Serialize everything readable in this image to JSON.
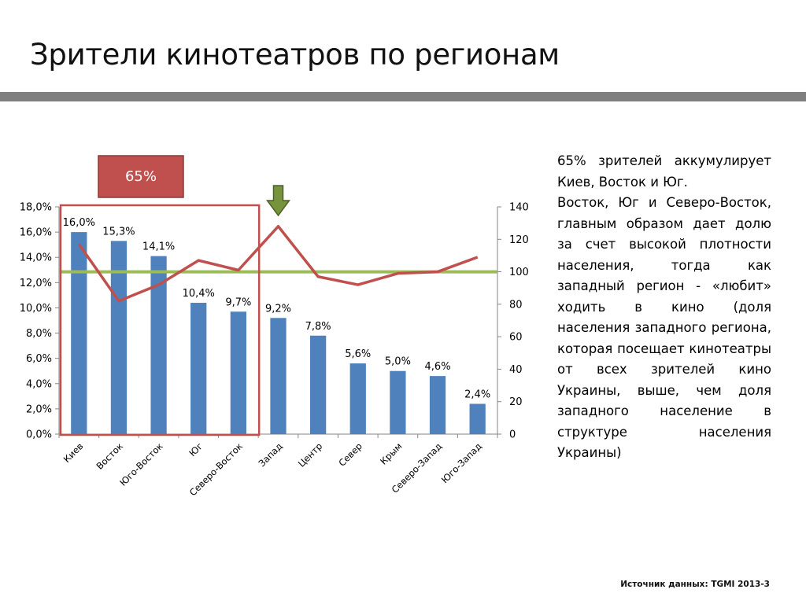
{
  "title": "Зрители кинотеатров по регионам",
  "highlight_label": "65%",
  "side_text": [
    "65% зрителей аккумулирует Киев, Восток и Юг.",
    "Восток, Юг и Северо-Восток, главным образом дает долю за счет высокой плотности населения, тогда как западный регион - «любит» ходить в кино (доля населения западного региона, которая посещает кинотеатры от всех зрителей кино Украины, выше, чем доля западного население в структуре населения Украины)"
  ],
  "source": "Источник данных: TGMI 2013-3",
  "colors": {
    "bar": "#4f81bd",
    "line": "#c0504d",
    "reference": "#9bbb59",
    "highlight_box": "#c0504d",
    "arrow": "#77933c",
    "title_rule": "#7f7f7f"
  },
  "chart_data": {
    "type": "bar",
    "categories": [
      "Киев",
      "Восток",
      "Юго-Восток",
      "Юг",
      "Северо-Восток",
      "Запад",
      "Центр",
      "Север",
      "Крым",
      "Северо-Запад",
      "Юго-Запад"
    ],
    "series": [
      {
        "type": "bar",
        "axis": "left",
        "values": [
          16.0,
          15.3,
          14.1,
          10.4,
          9.7,
          9.2,
          7.8,
          5.6,
          5.0,
          4.6,
          2.4
        ]
      },
      {
        "type": "line",
        "axis": "right",
        "values": [
          117,
          82,
          92,
          107,
          101,
          128,
          97,
          92,
          99,
          100,
          109
        ]
      },
      {
        "type": "line",
        "axis": "right",
        "values": [
          100,
          100,
          100,
          100,
          100,
          100,
          100,
          100,
          100,
          100,
          100
        ]
      }
    ],
    "data_labels": [
      "16,0%",
      "15,3%",
      "14,1%",
      "10,4%",
      "9,7%",
      "9,2%",
      "7,8%",
      "5,6%",
      "5,0%",
      "4,6%",
      "2,4%"
    ],
    "y_ticks": [
      "0,0%",
      "2,0%",
      "4,0%",
      "6,0%",
      "8,0%",
      "10,0%",
      "12,0%",
      "14,0%",
      "16,0%",
      "18,0%"
    ],
    "y2_ticks": [
      "0",
      "20",
      "40",
      "60",
      "80",
      "100",
      "120",
      "140"
    ],
    "ylim": [
      0,
      18
    ],
    "y2lim": [
      0,
      140
    ],
    "highlight": {
      "categories": [
        "Киев",
        "Восток",
        "Юго-Восток",
        "Юг",
        "Северо-Восток"
      ],
      "label": "65%"
    },
    "arrow_at": "Запад",
    "grid": false
  }
}
